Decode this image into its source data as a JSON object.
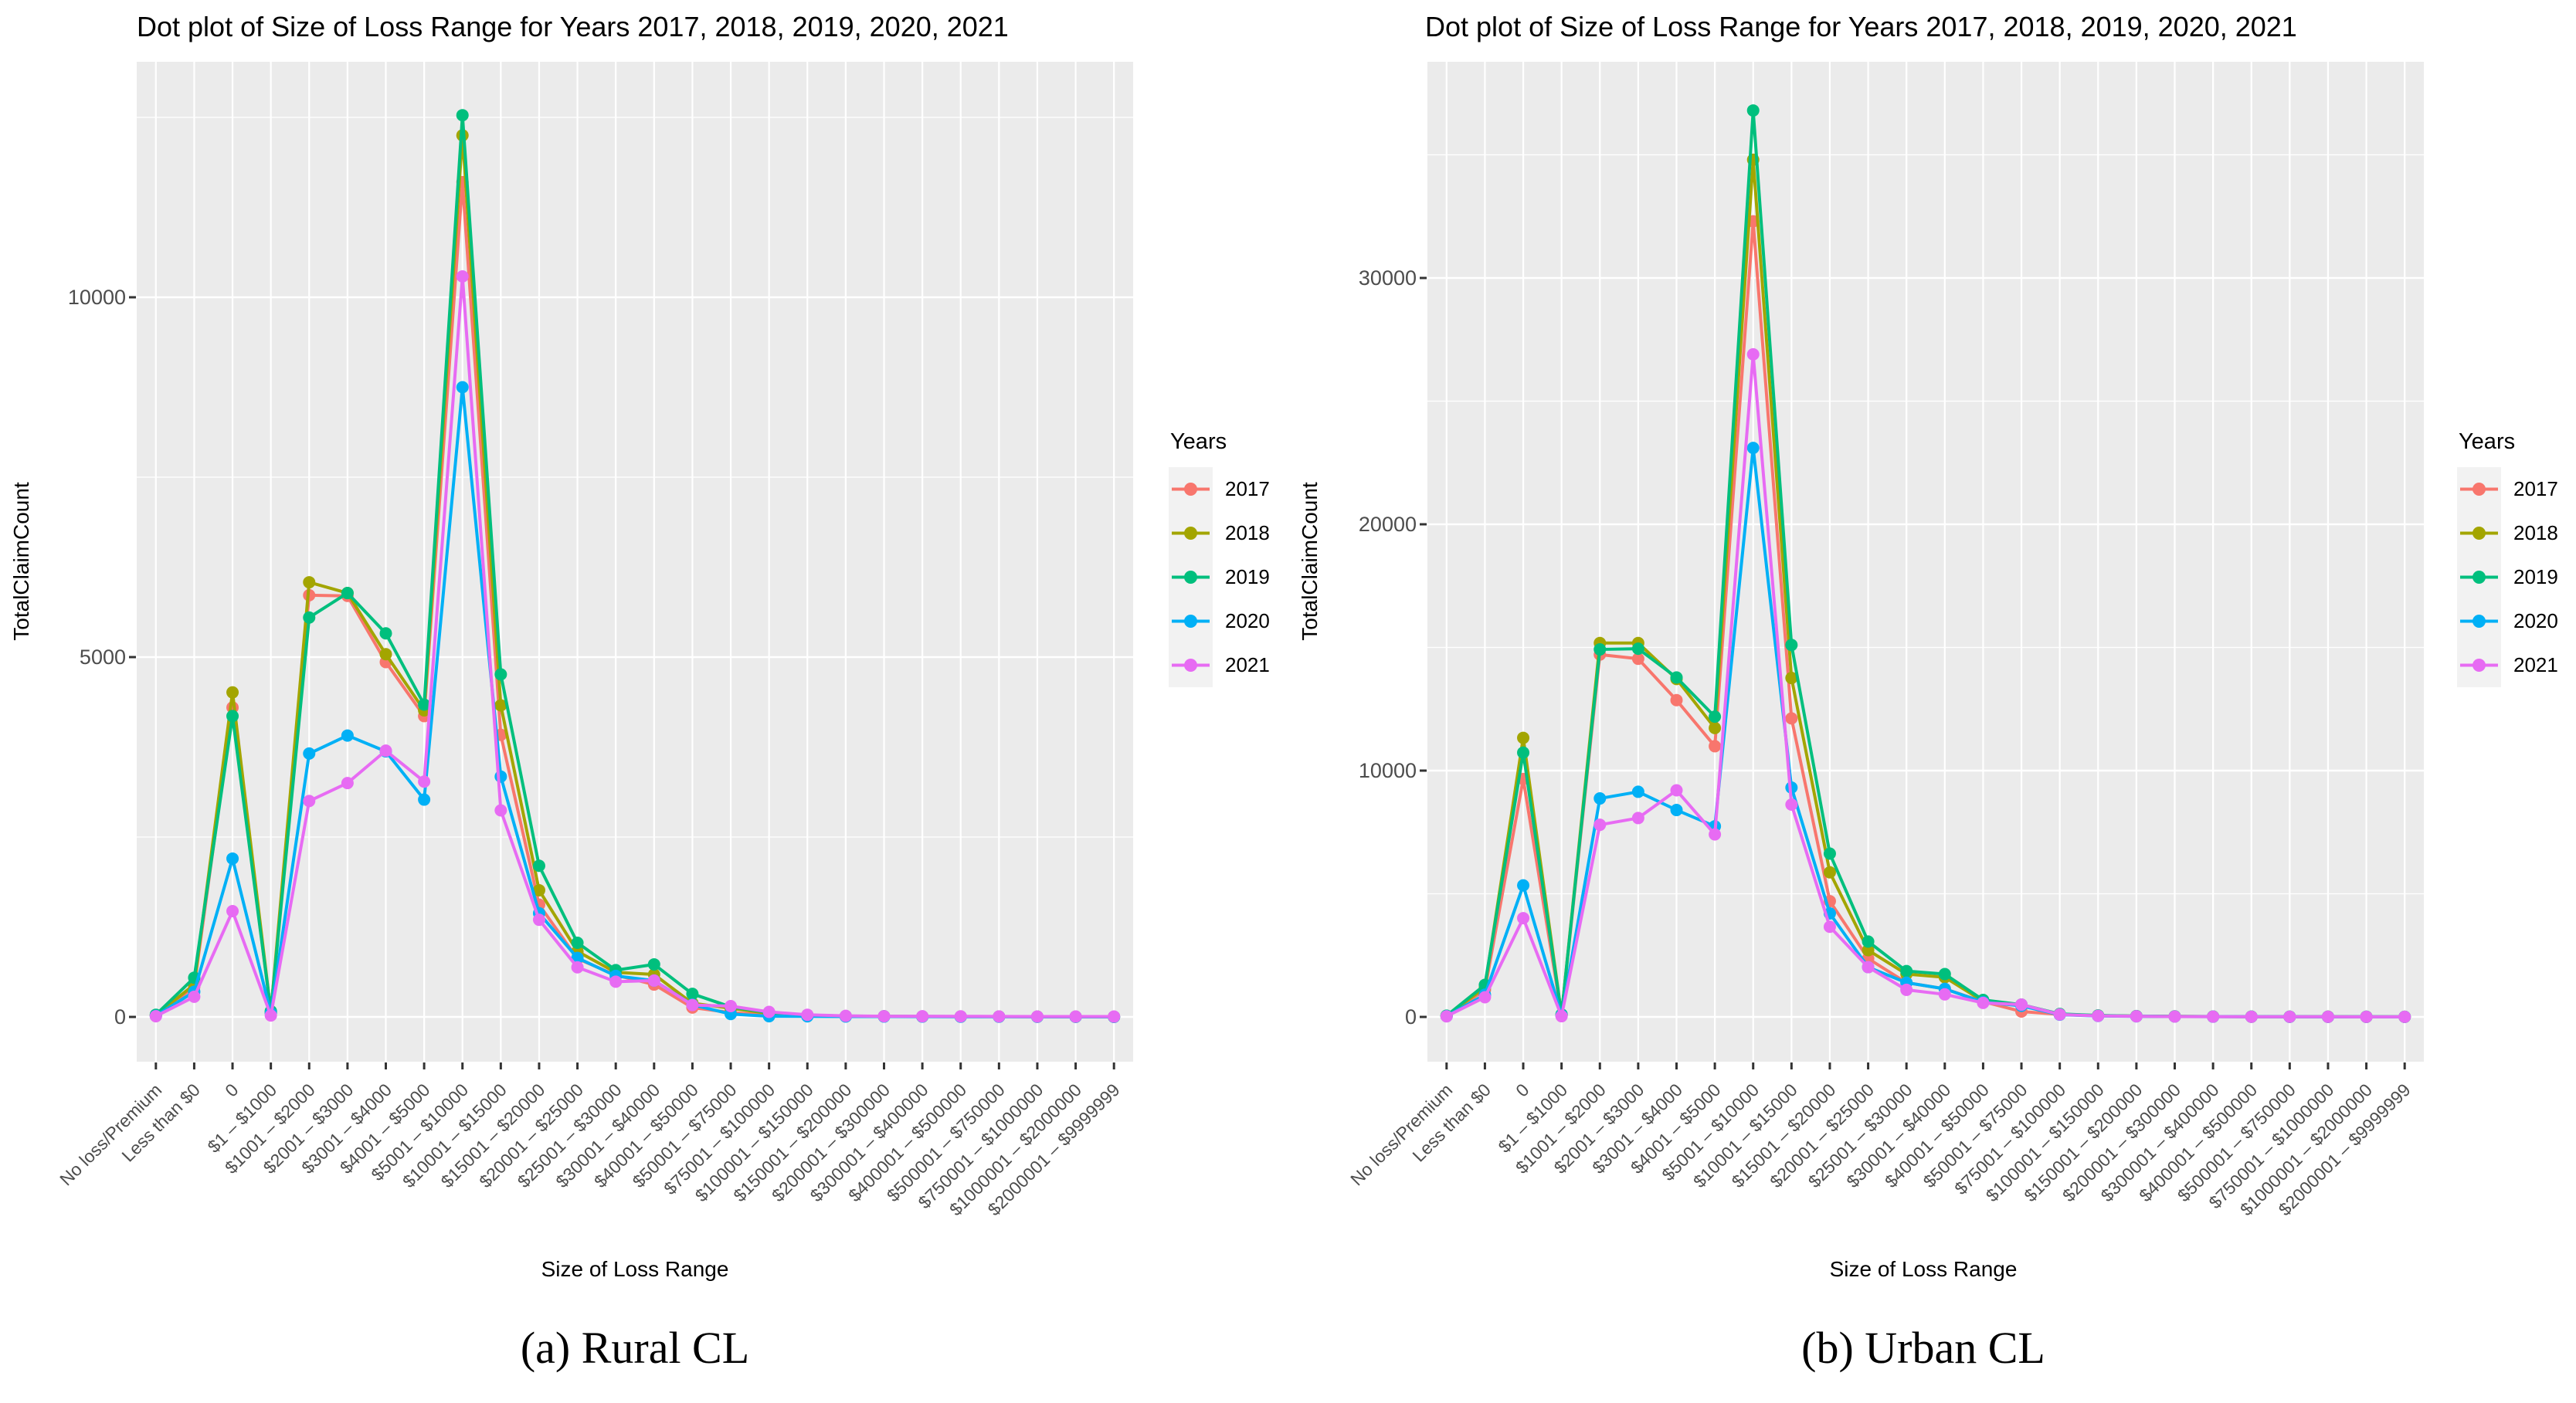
{
  "style": {
    "panel_bg": "#EBEBEB",
    "grid_color": "#FFFFFF",
    "tick_color": "#333333",
    "tick_label_color": "#4D4D4D",
    "legend_key_bg": "#F2F2F2"
  },
  "chart_data": [
    {
      "type": "line",
      "title": "Dot plot of Size of Loss Range for Years 2017, 2018, 2019, 2020, 2021",
      "xlabel": "Size of Loss Range",
      "ylabel": "TotalClaimCount",
      "caption": "(a) Rural CL",
      "legend_title": "Years",
      "legend_position": "right",
      "grid": true,
      "ylim": [
        0,
        13300
      ],
      "yticks": [
        0,
        5000,
        10000
      ],
      "categories": [
        "No loss/Premium",
        "Less than $0",
        "0",
        "$1 – $1000",
        "$1001 – $2000",
        "$2001 – $3000",
        "$3001 – $4000",
        "$4001 – $5000",
        "$5001 – $10000",
        "$10001 – $15000",
        "$15001 – $20000",
        "$20001 – $25000",
        "$25001 – $30000",
        "$30001 – $40000",
        "$40001 – $50000",
        "$50001 – $75000",
        "$75001 – $100000",
        "$100001 – $150000",
        "$150001 – $200000",
        "$200001 – $300000",
        "$300001 – $400000",
        "$400001 – $500000",
        "$500001 – $750000",
        "$750001 – $1000000",
        "$1000001 – $2000000",
        "$2000001 – $9999999"
      ],
      "series": [
        {
          "name": "2017",
          "color": "#F8766D",
          "values": [
            20,
            420,
            4300,
            60,
            5860,
            5850,
            4930,
            4180,
            11600,
            3920,
            1560,
            810,
            580,
            450,
            130,
            60,
            25,
            12,
            8,
            6,
            5,
            4,
            4,
            3,
            3,
            2
          ]
        },
        {
          "name": "2018",
          "color": "#A3A500",
          "values": [
            25,
            450,
            4510,
            70,
            6040,
            5890,
            5040,
            4260,
            12250,
            4330,
            1760,
            910,
            620,
            590,
            190,
            120,
            50,
            20,
            10,
            8,
            6,
            5,
            5,
            4,
            3,
            2
          ]
        },
        {
          "name": "2019",
          "color": "#00BF7D",
          "values": [
            30,
            545,
            4180,
            80,
            5550,
            5890,
            5330,
            4340,
            12530,
            4760,
            2100,
            1030,
            650,
            730,
            320,
            140,
            60,
            25,
            12,
            9,
            7,
            5,
            5,
            4,
            3,
            2
          ]
        },
        {
          "name": "2020",
          "color": "#00B0F6",
          "values": [
            15,
            350,
            2200,
            50,
            3660,
            3910,
            3690,
            3020,
            8750,
            3340,
            1440,
            820,
            570,
            505,
            170,
            40,
            10,
            8,
            6,
            5,
            4,
            3,
            3,
            2,
            2,
            1
          ]
        },
        {
          "name": "2021",
          "color": "#E76BF3",
          "values": [
            10,
            280,
            1470,
            20,
            3000,
            3250,
            3700,
            3270,
            10290,
            2870,
            1350,
            690,
            490,
            505,
            165,
            150,
            70,
            30,
            15,
            10,
            9,
            8,
            7,
            6,
            5,
            5
          ]
        }
      ]
    },
    {
      "type": "line",
      "title": "Dot plot of Size of Loss Range for Years 2017, 2018, 2019, 2020, 2021",
      "xlabel": "Size of Loss Range",
      "ylabel": "TotalClaimCount",
      "caption": "(b) Urban CL",
      "legend_title": "Years",
      "legend_position": "right",
      "grid": true,
      "ylim": [
        0,
        38900
      ],
      "yticks": [
        0,
        10000,
        20000,
        30000
      ],
      "categories": [
        "No loss/Premium",
        "Less than $0",
        "0",
        "$1 – $1000",
        "$1001 – $2000",
        "$2001 – $3000",
        "$3001 – $4000",
        "$4001 – $5000",
        "$5001 – $10000",
        "$10001 – $15000",
        "$15001 – $20000",
        "$20001 – $25000",
        "$25001 – $30000",
        "$30001 – $40000",
        "$40001 – $50000",
        "$50001 – $75000",
        "$75001 – $100000",
        "$100001 – $150000",
        "$150001 – $200000",
        "$200001 – $300000",
        "$300001 – $400000",
        "$400001 – $500000",
        "$500001 – $750000",
        "$750001 – $1000000",
        "$1000001 – $2000000",
        "$2000001 – $9999999"
      ],
      "series": [
        {
          "name": "2017",
          "color": "#F8766D",
          "values": [
            40,
            1100,
            9660,
            80,
            14710,
            14540,
            12860,
            10990,
            32300,
            12120,
            4700,
            2370,
            1390,
            1140,
            620,
            220,
            100,
            50,
            30,
            20,
            14,
            10,
            8,
            6,
            5,
            4
          ]
        },
        {
          "name": "2018",
          "color": "#A3A500",
          "values": [
            45,
            1200,
            11330,
            90,
            15180,
            15180,
            13720,
            11730,
            34800,
            13760,
            5870,
            2710,
            1740,
            1610,
            640,
            480,
            110,
            55,
            32,
            20,
            14,
            10,
            9,
            7,
            5,
            4
          ]
        },
        {
          "name": "2019",
          "color": "#00BF7D",
          "values": [
            50,
            1300,
            10730,
            100,
            14920,
            14950,
            13780,
            12190,
            36800,
            15100,
            6630,
            3060,
            1860,
            1740,
            690,
            500,
            120,
            60,
            35,
            22,
            15,
            11,
            9,
            7,
            6,
            4
          ]
        },
        {
          "name": "2020",
          "color": "#00B0F6",
          "values": [
            30,
            900,
            5340,
            60,
            8870,
            9140,
            8400,
            7740,
            23100,
            9310,
            4200,
            2020,
            1390,
            1140,
            600,
            450,
            90,
            40,
            25,
            15,
            10,
            8,
            6,
            5,
            4,
            3
          ]
        },
        {
          "name": "2021",
          "color": "#E76BF3",
          "values": [
            25,
            800,
            4010,
            30,
            7800,
            8075,
            9200,
            7410,
            26900,
            8620,
            3660,
            2020,
            1100,
            915,
            570,
            500,
            100,
            45,
            26,
            16,
            11,
            9,
            8,
            6,
            5,
            4
          ]
        }
      ]
    }
  ]
}
